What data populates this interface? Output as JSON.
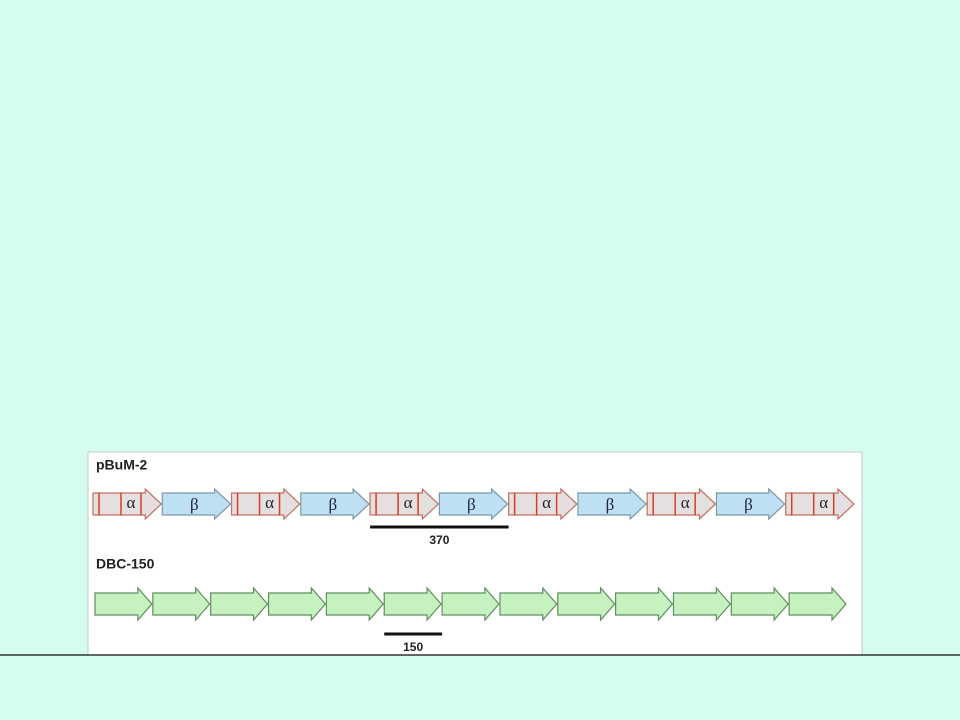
{
  "rows": [
    {
      "label": "pBuM-2",
      "units": [
        "α",
        "β",
        "α",
        "β",
        "α",
        "β",
        "α",
        "β",
        "α",
        "β",
        "α"
      ],
      "scale": "370"
    },
    {
      "label": "DBC-150",
      "units": [
        "",
        "",
        "",
        "",
        "",
        "",
        "",
        "",
        "",
        "",
        "",
        "",
        ""
      ],
      "scale": "150"
    }
  ]
}
